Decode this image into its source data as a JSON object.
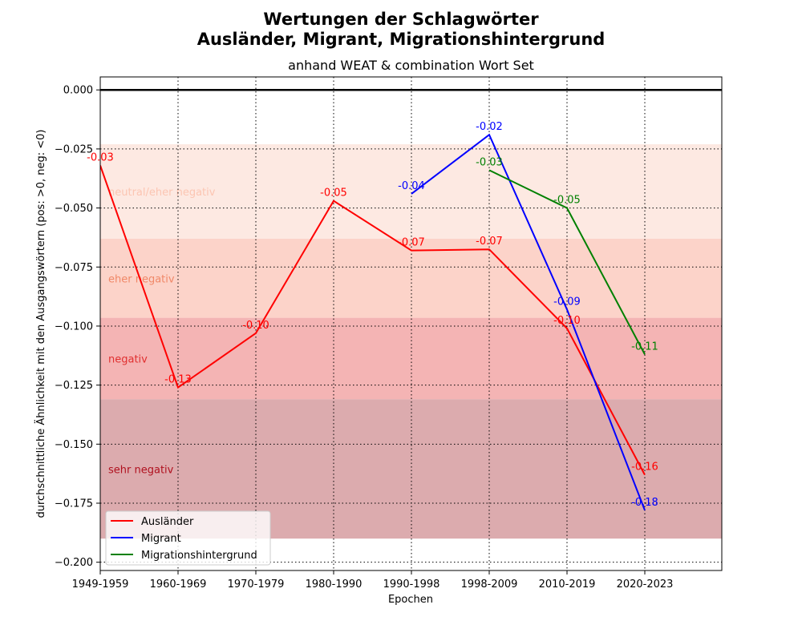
{
  "chart_data": {
    "type": "line",
    "title": "Wertungen der Schlagwörter",
    "title_line2": "Ausländer, Migrant, Migrationshintergrund",
    "subtitle": "anhand WEAT & combination Wort Set",
    "xlabel": "Epochen",
    "ylabel": "durchschnittliche Ähnlichkeit mit den Ausgangswörtern (pos: >0, neg: <0)",
    "categories": [
      "1949-1959",
      "1960-1969",
      "1970-1979",
      "1980-1990",
      "1990-1998",
      "1998-2009",
      "2010-2019",
      "2020-2023"
    ],
    "ylim": [
      -0.2035,
      0.0055
    ],
    "yticks": [
      "0.000",
      "−0.025",
      "−0.050",
      "−0.075",
      "−0.100",
      "−0.125",
      "−0.150",
      "−0.175",
      "−0.200"
    ],
    "grid": "dotted",
    "legend_position": "lower-left",
    "bands": [
      {
        "label": "neutral",
        "y0": 0.0,
        "y1": 0.0,
        "color": "#000000",
        "label_color": "#ffffff"
      },
      {
        "label": "neutral/eher negativ",
        "y0": -0.023,
        "y1": -0.063,
        "color": "#fde9e2",
        "label_color": "#fcc5b2"
      },
      {
        "label": "eher negativ",
        "y0": -0.063,
        "y1": -0.0965,
        "color": "#fcd3c9",
        "label_color": "#f08868"
      },
      {
        "label": "negativ",
        "y0": -0.0965,
        "y1": -0.131,
        "color": "#f4b4b4",
        "label_color": "#e03030"
      },
      {
        "label": "sehr negativ",
        "y0": -0.131,
        "y1": -0.19,
        "color": "#dcabae",
        "label_color": "#b0101e"
      }
    ],
    "series": [
      {
        "name": "Ausländer",
        "color": "#ff0000",
        "values": [
          -0.032,
          -0.126,
          -0.103,
          -0.047,
          -0.068,
          -0.0675,
          -0.101,
          -0.163
        ],
        "labels": [
          "-0.03",
          "-0.13",
          "-0.10",
          "-0.05",
          "-0.07",
          "-0.07",
          "-0.10",
          "-0.16"
        ]
      },
      {
        "name": "Migrant",
        "color": "#0000ff",
        "values": [
          null,
          null,
          null,
          null,
          -0.044,
          -0.019,
          -0.093,
          -0.178
        ],
        "labels": [
          null,
          null,
          null,
          null,
          "-0.04",
          "-0.02",
          "-0.09",
          "-0.18"
        ]
      },
      {
        "name": "Migrationshintergrund",
        "color": "#008000",
        "values": [
          null,
          null,
          null,
          null,
          null,
          -0.034,
          -0.05,
          -0.112
        ],
        "labels": [
          null,
          null,
          null,
          null,
          null,
          "-0.03",
          "-0.05",
          "-0.11"
        ]
      }
    ]
  }
}
